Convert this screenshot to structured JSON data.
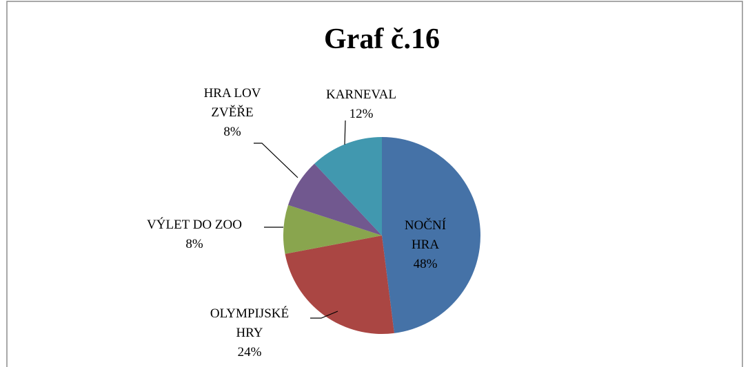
{
  "chart_data": {
    "type": "pie",
    "title": "Graf č.16",
    "categories": [
      "NOČNÍ HRA",
      "OLYMPIJSKÉ HRY",
      "VÝLET DO ZOO",
      "HRA LOV ZVĚŘE",
      "KARNEVAL"
    ],
    "values": [
      48,
      24,
      8,
      8,
      12
    ],
    "value_labels": [
      "48%",
      "24%",
      "8%",
      "8%",
      "12%"
    ],
    "colors": [
      "#4572a7",
      "#aa4643",
      "#89a54e",
      "#71588f",
      "#4198af"
    ]
  }
}
